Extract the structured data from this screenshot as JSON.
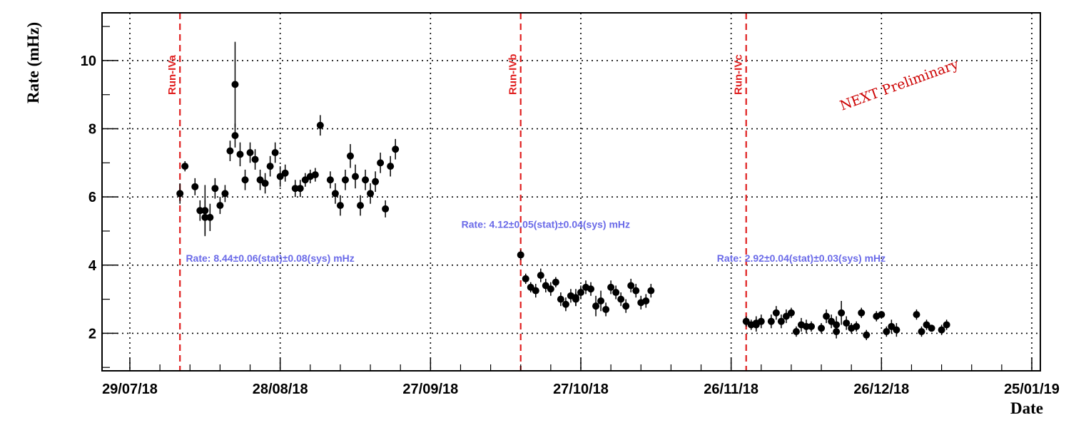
{
  "chart_data": {
    "type": "scatter",
    "xlabel": "Date",
    "ylabel": "Rate (mHz)",
    "x_axis": "date",
    "xlim": [
      "2018-07-29",
      "2019-01-25"
    ],
    "ylim": [
      0.9,
      11.4
    ],
    "x_ticks": [
      "29/07/18",
      "28/08/18",
      "27/09/18",
      "27/10/18",
      "26/11/18",
      "26/12/18",
      "25/01/19"
    ],
    "y_ticks": [
      2,
      4,
      6,
      8,
      10
    ],
    "grid": true,
    "marker_color": "#000000",
    "run_line_color": "#e02020",
    "annotation_color": "#6a6ae8",
    "watermark": "NEXT Preliminary",
    "watermark_color": "#cc0000",
    "runs": [
      {
        "label": "Run-IVa",
        "start": "2018-08-08"
      },
      {
        "label": "Run-IVb",
        "start": "2018-10-15"
      },
      {
        "label": "Run-IVc",
        "start": "2018-11-29"
      }
    ],
    "rate_annotations": [
      {
        "text": "Rate: 8.44±0.06(stat)±0.08(sys) mHz",
        "x": "2018-08-26",
        "y": 4.2
      },
      {
        "text": "Rate: 4.12±0.05(stat)±0.04(sys) mHz",
        "x": "2018-10-20",
        "y": 5.2
      },
      {
        "text": "Rate: 2.92±0.04(stat)±0.03(sys) mHz",
        "x": "2018-12-10",
        "y": 4.2
      }
    ],
    "series": [
      {
        "points": [
          {
            "x": "2018-08-08",
            "y": 6.1,
            "err": 0.3
          },
          {
            "x": "2018-08-09",
            "y": 6.9,
            "err": 0.15
          },
          {
            "x": "2018-08-11",
            "y": 6.3,
            "err": 0.25
          },
          {
            "x": "2018-08-12",
            "y": 5.6,
            "err": 0.3
          },
          {
            "x": "2018-08-13",
            "y": 5.4,
            "err": 0.5
          },
          {
            "x": "2018-08-13",
            "y": 5.6,
            "err": 0.75
          },
          {
            "x": "2018-08-14",
            "y": 5.4,
            "err": 0.4
          },
          {
            "x": "2018-08-15",
            "y": 6.25,
            "err": 0.3
          },
          {
            "x": "2018-08-16",
            "y": 5.75,
            "err": 0.25
          },
          {
            "x": "2018-08-17",
            "y": 6.1,
            "err": 0.25
          },
          {
            "x": "2018-08-18",
            "y": 7.35,
            "err": 0.3
          },
          {
            "x": "2018-08-19",
            "y": 7.8,
            "err": 0.35
          },
          {
            "x": "2018-08-19",
            "y": 9.3,
            "err": 1.25
          },
          {
            "x": "2018-08-20",
            "y": 7.25,
            "err": 0.35
          },
          {
            "x": "2018-08-21",
            "y": 6.5,
            "err": 0.3
          },
          {
            "x": "2018-08-22",
            "y": 7.3,
            "err": 0.3
          },
          {
            "x": "2018-08-23",
            "y": 7.1,
            "err": 0.3
          },
          {
            "x": "2018-08-24",
            "y": 6.5,
            "err": 0.3
          },
          {
            "x": "2018-08-25",
            "y": 6.4,
            "err": 0.3
          },
          {
            "x": "2018-08-26",
            "y": 6.9,
            "err": 0.3
          },
          {
            "x": "2018-08-27",
            "y": 7.3,
            "err": 0.3
          },
          {
            "x": "2018-08-28",
            "y": 6.6,
            "err": 0.3
          },
          {
            "x": "2018-08-29",
            "y": 6.7,
            "err": 0.25
          },
          {
            "x": "2018-08-31",
            "y": 6.25,
            "err": 0.25
          },
          {
            "x": "2018-09-01",
            "y": 6.25,
            "err": 0.25
          },
          {
            "x": "2018-09-02",
            "y": 6.5,
            "err": 0.2
          },
          {
            "x": "2018-09-03",
            "y": 6.6,
            "err": 0.2
          },
          {
            "x": "2018-09-04",
            "y": 6.65,
            "err": 0.2
          },
          {
            "x": "2018-09-05",
            "y": 8.1,
            "err": 0.3
          },
          {
            "x": "2018-09-07",
            "y": 6.5,
            "err": 0.25
          },
          {
            "x": "2018-09-08",
            "y": 6.1,
            "err": 0.3
          },
          {
            "x": "2018-09-09",
            "y": 5.75,
            "err": 0.3
          },
          {
            "x": "2018-09-10",
            "y": 6.5,
            "err": 0.3
          },
          {
            "x": "2018-09-11",
            "y": 7.2,
            "err": 0.35
          },
          {
            "x": "2018-09-12",
            "y": 6.6,
            "err": 0.35
          },
          {
            "x": "2018-09-13",
            "y": 5.75,
            "err": 0.3
          },
          {
            "x": "2018-09-14",
            "y": 6.5,
            "err": 0.3
          },
          {
            "x": "2018-09-15",
            "y": 6.1,
            "err": 0.3
          },
          {
            "x": "2018-09-16",
            "y": 6.45,
            "err": 0.3
          },
          {
            "x": "2018-09-17",
            "y": 7.0,
            "err": 0.3
          },
          {
            "x": "2018-09-18",
            "y": 5.65,
            "err": 0.25
          },
          {
            "x": "2018-09-19",
            "y": 6.9,
            "err": 0.3
          },
          {
            "x": "2018-09-20",
            "y": 7.4,
            "err": 0.3
          },
          {
            "x": "2018-10-15",
            "y": 4.3,
            "err": 0.15
          },
          {
            "x": "2018-10-16",
            "y": 3.6,
            "err": 0.15
          },
          {
            "x": "2018-10-17",
            "y": 3.35,
            "err": 0.15
          },
          {
            "x": "2018-10-18",
            "y": 3.25,
            "err": 0.2
          },
          {
            "x": "2018-10-19",
            "y": 3.7,
            "err": 0.2
          },
          {
            "x": "2018-10-20",
            "y": 3.4,
            "err": 0.2
          },
          {
            "x": "2018-10-21",
            "y": 3.3,
            "err": 0.2
          },
          {
            "x": "2018-10-22",
            "y": 3.5,
            "err": 0.15
          },
          {
            "x": "2018-10-23",
            "y": 3.0,
            "err": 0.2
          },
          {
            "x": "2018-10-24",
            "y": 2.85,
            "err": 0.2
          },
          {
            "x": "2018-10-25",
            "y": 3.1,
            "err": 0.2
          },
          {
            "x": "2018-10-26",
            "y": 3.0,
            "err": 0.2
          },
          {
            "x": "2018-10-26",
            "y": 3.05,
            "err": 0.25
          },
          {
            "x": "2018-10-27",
            "y": 3.2,
            "err": 0.2
          },
          {
            "x": "2018-10-28",
            "y": 3.35,
            "err": 0.2
          },
          {
            "x": "2018-10-29",
            "y": 3.3,
            "err": 0.2
          },
          {
            "x": "2018-10-30",
            "y": 2.8,
            "err": 0.3
          },
          {
            "x": "2018-10-31",
            "y": 2.95,
            "err": 0.3
          },
          {
            "x": "2018-11-01",
            "y": 2.7,
            "err": 0.2
          },
          {
            "x": "2018-11-02",
            "y": 3.35,
            "err": 0.2
          },
          {
            "x": "2018-11-03",
            "y": 3.2,
            "err": 0.2
          },
          {
            "x": "2018-11-04",
            "y": 3.0,
            "err": 0.2
          },
          {
            "x": "2018-11-05",
            "y": 2.8,
            "err": 0.2
          },
          {
            "x": "2018-11-06",
            "y": 3.4,
            "err": 0.2
          },
          {
            "x": "2018-11-07",
            "y": 3.25,
            "err": 0.2
          },
          {
            "x": "2018-11-08",
            "y": 2.9,
            "err": 0.2
          },
          {
            "x": "2018-11-09",
            "y": 2.95,
            "err": 0.2
          },
          {
            "x": "2018-11-10",
            "y": 3.25,
            "err": 0.2
          },
          {
            "x": "2018-11-29",
            "y": 2.35,
            "err": 0.15
          },
          {
            "x": "2018-11-30",
            "y": 2.25,
            "err": 0.15
          },
          {
            "x": "2018-12-01",
            "y": 2.3,
            "err": 0.2
          },
          {
            "x": "2018-12-01",
            "y": 2.25,
            "err": 0.2
          },
          {
            "x": "2018-12-02",
            "y": 2.35,
            "err": 0.2
          },
          {
            "x": "2018-12-04",
            "y": 2.35,
            "err": 0.2
          },
          {
            "x": "2018-12-05",
            "y": 2.6,
            "err": 0.2
          },
          {
            "x": "2018-12-06",
            "y": 2.35,
            "err": 0.2
          },
          {
            "x": "2018-12-07",
            "y": 2.5,
            "err": 0.2
          },
          {
            "x": "2018-12-08",
            "y": 2.6,
            "err": 0.15
          },
          {
            "x": "2018-12-09",
            "y": 2.05,
            "err": 0.15
          },
          {
            "x": "2018-12-10",
            "y": 2.25,
            "err": 0.2
          },
          {
            "x": "2018-12-11",
            "y": 2.2,
            "err": 0.2
          },
          {
            "x": "2018-12-12",
            "y": 2.2,
            "err": 0.15
          },
          {
            "x": "2018-12-14",
            "y": 2.15,
            "err": 0.15
          },
          {
            "x": "2018-12-15",
            "y": 2.5,
            "err": 0.2
          },
          {
            "x": "2018-12-16",
            "y": 2.35,
            "err": 0.2
          },
          {
            "x": "2018-12-17",
            "y": 2.05,
            "err": 0.2
          },
          {
            "x": "2018-12-17",
            "y": 2.25,
            "err": 0.25
          },
          {
            "x": "2018-12-18",
            "y": 2.6,
            "err": 0.35
          },
          {
            "x": "2018-12-19",
            "y": 2.3,
            "err": 0.2
          },
          {
            "x": "2018-12-20",
            "y": 2.15,
            "err": 0.15
          },
          {
            "x": "2018-12-21",
            "y": 2.2,
            "err": 0.15
          },
          {
            "x": "2018-12-22",
            "y": 2.6,
            "err": 0.15
          },
          {
            "x": "2018-12-23",
            "y": 1.95,
            "err": 0.15
          },
          {
            "x": "2018-12-25",
            "y": 2.5,
            "err": 0.15
          },
          {
            "x": "2018-12-26",
            "y": 2.55,
            "err": 0.1
          },
          {
            "x": "2018-12-27",
            "y": 2.05,
            "err": 0.15
          },
          {
            "x": "2018-12-28",
            "y": 2.2,
            "err": 0.2
          },
          {
            "x": "2018-12-29",
            "y": 2.1,
            "err": 0.2
          },
          {
            "x": "2019-01-02",
            "y": 2.55,
            "err": 0.15
          },
          {
            "x": "2019-01-03",
            "y": 2.05,
            "err": 0.15
          },
          {
            "x": "2019-01-04",
            "y": 2.25,
            "err": 0.15
          },
          {
            "x": "2019-01-05",
            "y": 2.15,
            "err": 0.1
          },
          {
            "x": "2019-01-07",
            "y": 2.1,
            "err": 0.15
          },
          {
            "x": "2019-01-08",
            "y": 2.25,
            "err": 0.15
          }
        ]
      }
    ]
  }
}
